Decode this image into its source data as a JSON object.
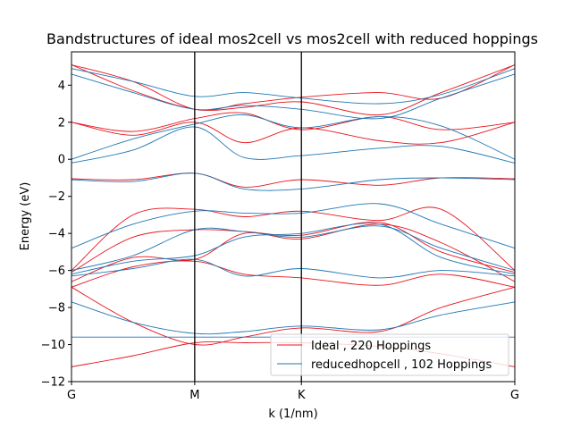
{
  "chart_data": {
    "type": "line",
    "title": "Bandstructures of ideal mos2cell vs mos2cell with reduced hoppings",
    "xlabel": "k (1/nm)",
    "ylabel": "Energy (eV)",
    "xticks": [
      "G",
      "M",
      "K",
      "G"
    ],
    "xtick_positions": [
      0,
      1,
      1.866,
      3.598
    ],
    "xlim": [
      0,
      3.598
    ],
    "ylim": [
      -12,
      5.8
    ],
    "yticks": [
      -12,
      -10,
      -8,
      -6,
      -4,
      -2,
      0,
      2,
      4
    ],
    "vlines": [
      1,
      1.866
    ],
    "legend_position": "lower-right",
    "grid": false,
    "series": [
      {
        "name": "Ideal , 220 Hoppings",
        "color": "#e8141c",
        "bands": [
          {
            "x": [
              0,
              0.5,
              1,
              1.4,
              1.866,
              2.5,
              3,
              3.598
            ],
            "y": [
              -11.2,
              -10.6,
              -9.9,
              -9.9,
              -9.9,
              -10.1,
              -10.5,
              -11.2
            ]
          },
          {
            "x": [
              0,
              0.5,
              1,
              1.4,
              1.866,
              2.5,
              3,
              3.598
            ],
            "y": [
              -6.9,
              -8.8,
              -10.0,
              -9.6,
              -9.1,
              -9.3,
              -8.0,
              -6.9
            ]
          },
          {
            "x": [
              0,
              0.5,
              1,
              1.4,
              1.866,
              2.5,
              3,
              3.598
            ],
            "y": [
              -6.9,
              -5.8,
              -5.5,
              -6.2,
              -6.4,
              -6.8,
              -6.2,
              -6.9
            ]
          },
          {
            "x": [
              0,
              0.5,
              1,
              1.4,
              1.866,
              2.5,
              3,
              3.598
            ],
            "y": [
              -6.6,
              -5.3,
              -5.4,
              -4.0,
              -4.3,
              -3.5,
              -4.5,
              -6.6
            ]
          },
          {
            "x": [
              0,
              0.5,
              1,
              1.4,
              1.866,
              2.5,
              3,
              3.598
            ],
            "y": [
              -6.1,
              -4.2,
              -3.8,
              -3.9,
              -4.1,
              -3.4,
              -5.0,
              -6.1
            ]
          },
          {
            "x": [
              0,
              0.5,
              1,
              1.4,
              1.866,
              2.5,
              3,
              3.598
            ],
            "y": [
              -6.0,
              -3.0,
              -2.7,
              -3.1,
              -2.8,
              -3.3,
              -2.7,
              -6.0
            ]
          },
          {
            "x": [
              0,
              0.5,
              1,
              1.4,
              1.866,
              2.5,
              3,
              3.598
            ],
            "y": [
              -1.05,
              -1.1,
              -0.75,
              -1.5,
              -1.1,
              -1.4,
              -1.0,
              -1.05
            ]
          },
          {
            "x": [
              0,
              0.5,
              1,
              1.4,
              1.866,
              2.5,
              3,
              3.598
            ],
            "y": [
              2.0,
              1.3,
              2.0,
              0.9,
              1.7,
              1.0,
              0.9,
              2.0
            ]
          },
          {
            "x": [
              0,
              0.5,
              1,
              1.4,
              1.866,
              2.5,
              3,
              3.598
            ],
            "y": [
              2.0,
              1.5,
              2.2,
              2.5,
              1.6,
              2.3,
              1.6,
              2.0
            ]
          },
          {
            "x": [
              0,
              0.5,
              1,
              1.4,
              1.866,
              2.5,
              3,
              3.598
            ],
            "y": [
              5.1,
              3.7,
              2.7,
              2.8,
              3.1,
              2.4,
              3.6,
              5.1
            ]
          },
          {
            "x": [
              0,
              0.5,
              1,
              1.4,
              1.866,
              2.5,
              3,
              3.598
            ],
            "y": [
              5.1,
              4.2,
              2.7,
              3.0,
              3.35,
              3.6,
              3.3,
              5.1
            ]
          }
        ]
      },
      {
        "name": "reducedhopcell , 102 Hoppings",
        "color": "#1f77b4",
        "bands": [
          {
            "x": [
              0,
              0.5,
              1,
              1.4,
              1.866,
              2.5,
              3,
              3.598
            ],
            "y": [
              -9.6,
              -9.6,
              -9.6,
              -9.6,
              -9.6,
              -9.6,
              -9.6,
              -9.6
            ]
          },
          {
            "x": [
              0,
              0.5,
              1,
              1.4,
              1.866,
              2.5,
              3,
              3.598
            ],
            "y": [
              -7.7,
              -8.8,
              -9.4,
              -9.3,
              -9.0,
              -9.2,
              -8.4,
              -7.7
            ]
          },
          {
            "x": [
              0,
              0.5,
              1,
              1.4,
              1.866,
              2.5,
              3,
              3.598
            ],
            "y": [
              -6.3,
              -5.9,
              -5.4,
              -6.3,
              -5.9,
              -6.4,
              -6.0,
              -6.3
            ]
          },
          {
            "x": [
              0,
              0.5,
              1,
              1.4,
              1.866,
              2.5,
              3,
              3.598
            ],
            "y": [
              -6.2,
              -5.5,
              -5.2,
              -4.2,
              -4.0,
              -3.5,
              -5.3,
              -6.2
            ]
          },
          {
            "x": [
              0,
              0.5,
              1,
              1.4,
              1.866,
              2.5,
              3,
              3.598
            ],
            "y": [
              -6.0,
              -5.2,
              -3.8,
              -3.9,
              -4.2,
              -3.6,
              -4.8,
              -6.0
            ]
          },
          {
            "x": [
              0,
              0.5,
              1,
              1.4,
              1.866,
              2.5,
              3,
              3.598
            ],
            "y": [
              -4.8,
              -3.5,
              -2.8,
              -2.9,
              -2.9,
              -2.4,
              -3.5,
              -4.8
            ]
          },
          {
            "x": [
              0,
              0.5,
              1,
              1.4,
              1.866,
              2.5,
              3,
              3.598
            ],
            "y": [
              -1.1,
              -1.2,
              -0.75,
              -1.6,
              -1.6,
              -1.1,
              -1.0,
              -1.1
            ]
          },
          {
            "x": [
              0,
              0.5,
              1,
              1.4,
              1.866,
              2.5,
              3,
              3.598
            ],
            "y": [
              -0.2,
              0.5,
              1.75,
              0.1,
              0.2,
              0.6,
              0.7,
              -0.2
            ]
          },
          {
            "x": [
              0,
              0.5,
              1,
              1.4,
              1.866,
              2.5,
              3,
              3.598
            ],
            "y": [
              0.0,
              1.1,
              1.9,
              2.4,
              1.7,
              2.3,
              1.8,
              0.0
            ]
          },
          {
            "x": [
              0,
              0.5,
              1,
              1.4,
              1.866,
              2.5,
              3,
              3.598
            ],
            "y": [
              4.6,
              3.6,
              2.7,
              2.9,
              2.7,
              2.2,
              3.3,
              4.6
            ]
          },
          {
            "x": [
              0,
              0.5,
              1,
              1.4,
              1.866,
              2.5,
              3,
              3.598
            ],
            "y": [
              4.9,
              4.2,
              3.4,
              3.6,
              3.3,
              3.0,
              3.5,
              4.9
            ]
          }
        ]
      }
    ]
  }
}
